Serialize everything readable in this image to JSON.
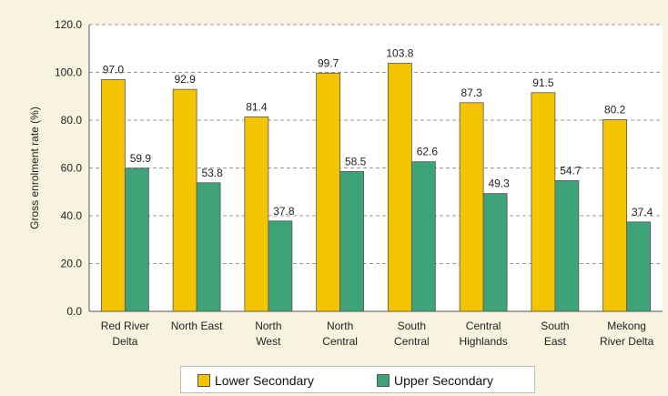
{
  "chart_data": {
    "type": "bar",
    "title": "",
    "xlabel": "",
    "ylabel": "Gross enrolment rate (%)",
    "ylim": [
      0,
      120
    ],
    "yticks": [
      "0.0",
      "20.0",
      "40.0",
      "60.0",
      "80.0",
      "100.0",
      "120.0"
    ],
    "grid": true,
    "legend_position": "bottom",
    "categories": [
      [
        "Red River",
        "Delta"
      ],
      [
        "North East"
      ],
      [
        "North",
        "West"
      ],
      [
        "North",
        "Central"
      ],
      [
        "South",
        "Central"
      ],
      [
        "Central",
        "Highlands"
      ],
      [
        "South",
        "East"
      ],
      [
        "Mekong",
        "River Delta"
      ]
    ],
    "series": [
      {
        "name": "Lower Secondary",
        "color": "#f5c400",
        "values": [
          97.0,
          92.9,
          81.4,
          99.7,
          103.8,
          87.3,
          91.5,
          80.2
        ],
        "labels": [
          "97.0",
          "92.9",
          "81.4",
          "99.7",
          "103.8",
          "87.3",
          "91.5",
          "80.2"
        ]
      },
      {
        "name": "Upper Secondary",
        "color": "#3fa37a",
        "values": [
          59.9,
          53.8,
          37.8,
          58.5,
          62.6,
          49.3,
          54.7,
          37.4
        ],
        "labels": [
          "59.9",
          "53.8",
          "37.8",
          "58.5",
          "62.6",
          "49.3",
          "54.7",
          "37.4"
        ]
      }
    ]
  }
}
